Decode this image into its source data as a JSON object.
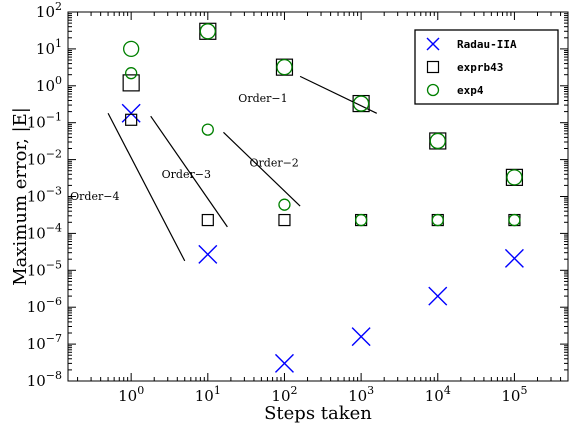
{
  "chart_data": {
    "type": "scatter",
    "xlabel": "Steps taken",
    "ylabel": "Maximum error, |E|",
    "x_scale": "log",
    "y_scale": "log",
    "xlim": [
      0.15,
      500000
    ],
    "ylim": [
      1e-08,
      100
    ],
    "grid": false,
    "legend_position": "top-right",
    "x_ticks": [
      {
        "value": 1,
        "base": "10",
        "exp": "0"
      },
      {
        "value": 10,
        "base": "10",
        "exp": "1"
      },
      {
        "value": 100,
        "base": "10",
        "exp": "2"
      },
      {
        "value": 1000,
        "base": "10",
        "exp": "3"
      },
      {
        "value": 10000,
        "base": "10",
        "exp": "4"
      },
      {
        "value": 100000,
        "base": "10",
        "exp": "5"
      }
    ],
    "y_ticks": [
      {
        "value": 1e-08,
        "base": "10",
        "exp": "−8"
      },
      {
        "value": 1e-07,
        "base": "10",
        "exp": "−7"
      },
      {
        "value": 1e-06,
        "base": "10",
        "exp": "−6"
      },
      {
        "value": 1e-05,
        "base": "10",
        "exp": "−5"
      },
      {
        "value": 0.0001,
        "base": "10",
        "exp": "−4"
      },
      {
        "value": 0.001,
        "base": "10",
        "exp": "−3"
      },
      {
        "value": 0.01,
        "base": "10",
        "exp": "−2"
      },
      {
        "value": 0.1,
        "base": "10",
        "exp": "−1"
      },
      {
        "value": 1,
        "base": "10",
        "exp": "0"
      },
      {
        "value": 10,
        "base": "10",
        "exp": "1"
      },
      {
        "value": 100,
        "base": "10",
        "exp": "2"
      }
    ],
    "series": [
      {
        "name": "Radau-IIA",
        "marker": "x",
        "color": "#0000ff",
        "points": [
          {
            "x": 1,
            "y": 0.18,
            "size": "large"
          },
          {
            "x": 10,
            "y": 2.7e-05,
            "size": "large"
          },
          {
            "x": 100,
            "y": 3e-08,
            "size": "large"
          },
          {
            "x": 1000,
            "y": 1.6e-07,
            "size": "large"
          },
          {
            "x": 10000,
            "y": 2e-06,
            "size": "large"
          },
          {
            "x": 100000,
            "y": 2.1e-05,
            "size": "large"
          }
        ]
      },
      {
        "name": "exprb43",
        "marker": "square",
        "color": "#000000",
        "points": [
          {
            "x": 1,
            "y": 1.2,
            "size": "large"
          },
          {
            "x": 1,
            "y": 0.12,
            "size": "small"
          },
          {
            "x": 10,
            "y": 30,
            "size": "large"
          },
          {
            "x": 10,
            "y": 0.00023,
            "size": "small"
          },
          {
            "x": 100,
            "y": 3.2,
            "size": "large"
          },
          {
            "x": 100,
            "y": 0.00023,
            "size": "small"
          },
          {
            "x": 1000,
            "y": 0.33,
            "size": "large"
          },
          {
            "x": 1000,
            "y": 0.00023,
            "size": "small"
          },
          {
            "x": 10000,
            "y": 0.032,
            "size": "large"
          },
          {
            "x": 10000,
            "y": 0.00023,
            "size": "small"
          },
          {
            "x": 100000,
            "y": 0.0033,
            "size": "large"
          },
          {
            "x": 100000,
            "y": 0.00023,
            "size": "small"
          }
        ]
      },
      {
        "name": "exp4",
        "marker": "circle",
        "color": "#008000",
        "points": [
          {
            "x": 1,
            "y": 10,
            "size": "large"
          },
          {
            "x": 1,
            "y": 2.2,
            "size": "small"
          },
          {
            "x": 10,
            "y": 30,
            "size": "large"
          },
          {
            "x": 10,
            "y": 0.065,
            "size": "small"
          },
          {
            "x": 100,
            "y": 3.2,
            "size": "large"
          },
          {
            "x": 100,
            "y": 0.0006,
            "size": "small"
          },
          {
            "x": 1000,
            "y": 0.33,
            "size": "large"
          },
          {
            "x": 1000,
            "y": 0.00023,
            "size": "small"
          },
          {
            "x": 10000,
            "y": 0.032,
            "size": "large"
          },
          {
            "x": 10000,
            "y": 0.00023,
            "size": "small"
          },
          {
            "x": 100000,
            "y": 0.0033,
            "size": "large"
          },
          {
            "x": 100000,
            "y": 0.00023,
            "size": "small"
          }
        ]
      }
    ],
    "reference_lines": [
      {
        "label": "Order−1",
        "x1": 160,
        "y1": 1.8,
        "x2": 1600,
        "y2": 0.18,
        "label_x": 25,
        "label_y": 0.36
      },
      {
        "label": "Order−2",
        "x1": 16,
        "y1": 0.055,
        "x2": 160,
        "y2": 0.00055,
        "label_x": 35,
        "label_y": 0.0065
      },
      {
        "label": "Order−3",
        "x1": 1.8,
        "y1": 0.15,
        "x2": 18,
        "y2": 0.00015,
        "label_x": 2.5,
        "label_y": 0.0032
      },
      {
        "label": "Order−4",
        "x1": 0.5,
        "y1": 0.18,
        "x2": 5,
        "y2": 1.8e-05,
        "label_x": 0.16,
        "label_y": 0.0008
      }
    ]
  }
}
